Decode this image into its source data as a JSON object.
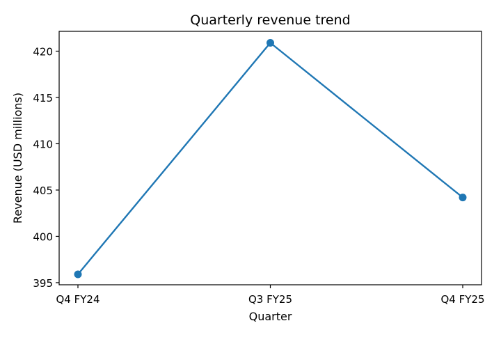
{
  "chart_data": {
    "type": "line",
    "title": "Quarterly revenue trend",
    "xlabel": "Quarter",
    "ylabel": "Revenue (USD millions)",
    "categories": [
      "Q4 FY24",
      "Q3 FY25",
      "Q4 FY25"
    ],
    "series": [
      {
        "name": "Revenue",
        "values": [
          395.9,
          420.9,
          404.2
        ],
        "color": "#1f77b4"
      }
    ],
    "ylim": [
      394.77,
      422.14
    ],
    "yticks": [
      395,
      400,
      405,
      410,
      415,
      420
    ],
    "grid": false,
    "legend": "none"
  }
}
